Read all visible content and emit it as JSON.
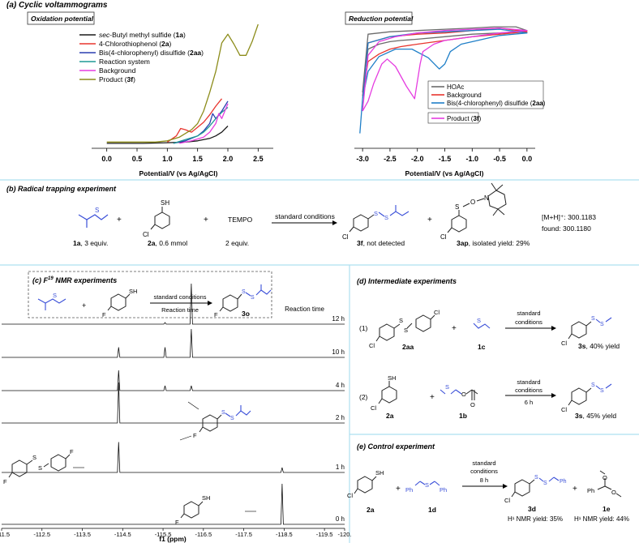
{
  "sections": {
    "a": "(a) Cyclic voltammograms",
    "b": "(b) Radical trapping experiment",
    "c_prefix": "(c) F",
    "c_sup": "19",
    "c_suffix": " NMR experiments",
    "d": "(d) Intermediate experiments",
    "e": "(e) Control experiment"
  },
  "colors": {
    "black": "#1a1a1a",
    "red": "#e8352e",
    "blue": "#2a3fb0",
    "teal": "#1f9a95",
    "magenta": "#e53de0",
    "olive": "#8c8c1a",
    "gray": "#6b6b6b",
    "skyblue": "#1f7fc8",
    "divider": "#aee0f0",
    "chem_blue": "#3a4fd8"
  },
  "chart_data": [
    {
      "type": "line",
      "title": "Oxidation potential",
      "xlabel": "Potential/V (vs Ag/AgCl)",
      "xlim": [
        -0.25,
        2.75
      ],
      "ylim": [
        0,
        1
      ],
      "ticks": [
        "0.0",
        "0.5",
        "1.0",
        "1.5",
        "2.0",
        "2.5"
      ],
      "tick_values": [
        0.0,
        0.5,
        1.0,
        1.5,
        2.0,
        2.5
      ],
      "legend": {
        "prefix": [
          "",
          "4-Chlorothiophenol (",
          "Bis(4-chlorophenyl) disulfide (",
          "Reaction system",
          "Background",
          "Product ("
        ],
        "italic_prefix": [
          "sec",
          "",
          "",
          "",
          "",
          ""
        ],
        "after_italic": [
          "-Butyl methyl sulfide (",
          "",
          "",
          "",
          "",
          ""
        ],
        "bold": [
          "1a",
          "2a",
          "2aa",
          "",
          "",
          "3f"
        ],
        "suffix": [
          ")",
          ")",
          ")",
          "",
          "",
          ")"
        ]
      },
      "series": [
        {
          "name": "sec-Butyl methyl sulfide (1a)",
          "color": "black",
          "x": [
            0.0,
            0.6,
            1.0,
            1.3,
            1.5,
            1.6,
            1.7,
            1.8,
            1.9,
            2.0
          ],
          "y": [
            0.04,
            0.04,
            0.045,
            0.05,
            0.06,
            0.07,
            0.08,
            0.1,
            0.13,
            0.18
          ]
        },
        {
          "name": "4-Chlorothiophenol (2a)",
          "color": "red",
          "x": [
            1.0,
            1.15,
            1.22,
            1.3,
            1.4,
            1.5,
            1.6,
            1.7,
            1.8,
            1.9
          ],
          "y": [
            0.05,
            0.1,
            0.16,
            0.15,
            0.13,
            0.17,
            0.21,
            0.27,
            0.34,
            0.4
          ]
        },
        {
          "name": "Bis(4-chlorophenyl) disulfide (2aa)",
          "color": "blue",
          "x": [
            1.1,
            1.3,
            1.5,
            1.6,
            1.7,
            1.75,
            1.8,
            1.9,
            2.0
          ],
          "y": [
            0.04,
            0.06,
            0.1,
            0.14,
            0.2,
            0.28,
            0.24,
            0.3,
            0.38
          ]
        },
        {
          "name": "Reaction system",
          "color": "teal",
          "x": [
            1.1,
            1.3,
            1.5,
            1.6,
            1.7,
            1.8,
            1.9,
            2.0
          ],
          "y": [
            0.04,
            0.07,
            0.1,
            0.13,
            0.18,
            0.24,
            0.29,
            0.33
          ]
        },
        {
          "name": "Background",
          "color": "magenta",
          "x": [
            1.2,
            1.4,
            1.6,
            1.7,
            1.8,
            1.85,
            1.9,
            2.0
          ],
          "y": [
            0.04,
            0.06,
            0.09,
            0.13,
            0.2,
            0.28,
            0.24,
            0.36
          ]
        },
        {
          "name": "Product (3f)",
          "color": "olive",
          "x": [
            0.0,
            0.8,
            1.0,
            1.2,
            1.4,
            1.5,
            1.6,
            1.7,
            1.8,
            1.9,
            2.0,
            2.1,
            2.2,
            2.3,
            2.4,
            2.5
          ],
          "y": [
            0.05,
            0.05,
            0.06,
            0.09,
            0.15,
            0.2,
            0.3,
            0.45,
            0.62,
            0.85,
            0.92,
            0.84,
            0.75,
            0.75,
            0.86,
            1.0
          ]
        }
      ]
    },
    {
      "type": "line",
      "title": "Reduction potential",
      "xlabel": "Potential/V (vs Ag/AgCl)",
      "xlim": [
        -3.15,
        0.15
      ],
      "ylim": [
        0,
        1
      ],
      "ticks": [
        "-3.0",
        "-2.5",
        "-2.0",
        "-1.5",
        "-1.0",
        "-0.5",
        "0.0"
      ],
      "tick_values": [
        -3.0,
        -2.5,
        -2.0,
        -1.5,
        -1.0,
        -0.5,
        0.0
      ],
      "legend": {
        "prefix": [
          "HOAc",
          "Background",
          "Bis(4-chlorophenyl) disulfide (",
          "Product ("
        ],
        "bold": [
          "",
          "",
          "2aa",
          "3f"
        ],
        "suffix": [
          "",
          "",
          ")",
          ")"
        ]
      },
      "series": [
        {
          "name": "HOAc",
          "color": "gray",
          "x": [
            -3.0,
            -2.9,
            -2.7,
            -2.5,
            -2.3,
            -2.0,
            -1.5,
            -1.0,
            -0.5,
            -0.2,
            0.0,
            -0.2,
            -0.6,
            -1.0,
            -1.5,
            -2.0,
            -2.5,
            -2.9,
            -3.0
          ],
          "y": [
            0.45,
            0.8,
            0.84,
            0.86,
            0.87,
            0.88,
            0.9,
            0.92,
            0.93,
            0.94,
            0.95,
            0.98,
            0.98,
            0.97,
            0.96,
            0.95,
            0.94,
            0.92,
            0.45
          ]
        },
        {
          "name": "Background",
          "color": "red",
          "x": [
            -3.0,
            -2.9,
            -2.7,
            -2.5,
            -2.3,
            -2.0,
            -1.5,
            -1.0,
            -0.5,
            0.0,
            -0.5,
            -1.0,
            -1.5,
            -2.0,
            -2.5,
            -2.9,
            -3.0
          ],
          "y": [
            0.42,
            0.7,
            0.76,
            0.8,
            0.82,
            0.84,
            0.87,
            0.9,
            0.92,
            0.94,
            0.97,
            0.95,
            0.93,
            0.92,
            0.9,
            0.85,
            0.42
          ]
        },
        {
          "name": "Bis(4-chlorophenyl) disulfide (2aa)",
          "color": "skyblue",
          "x": [
            -3.05,
            -3.0,
            -2.9,
            -2.7,
            -2.4,
            -2.1,
            -1.8,
            -1.6,
            -1.5,
            -1.4,
            -1.2,
            -0.8,
            -0.5,
            0.0,
            -0.5,
            -1.0,
            -1.5,
            -2.0,
            -2.5,
            -2.9,
            -3.0
          ],
          "y": [
            0.12,
            0.4,
            0.62,
            0.74,
            0.8,
            0.8,
            0.73,
            0.64,
            0.68,
            0.78,
            0.84,
            0.88,
            0.91,
            0.93,
            0.96,
            0.95,
            0.94,
            0.93,
            0.9,
            0.85,
            0.4
          ]
        },
        {
          "name": "Product (3f)",
          "color": "magenta",
          "x": [
            -3.0,
            -2.9,
            -2.8,
            -2.65,
            -2.55,
            -2.4,
            -2.2,
            -2.05,
            -1.95,
            -1.9,
            -1.7,
            -1.5,
            -1.0,
            -0.5,
            0.0,
            -0.5,
            -1.0,
            -1.5,
            -2.0,
            -2.4,
            -2.7,
            -2.9,
            -3.0
          ],
          "y": [
            0.3,
            0.38,
            0.52,
            0.68,
            0.72,
            0.66,
            0.5,
            0.4,
            0.68,
            0.78,
            0.84,
            0.87,
            0.9,
            0.93,
            0.95,
            0.97,
            0.96,
            0.95,
            0.93,
            0.9,
            0.86,
            0.75,
            0.3
          ]
        }
      ]
    },
    {
      "type": "line",
      "title": "F19 NMR experiments",
      "xlabel": "f1 (ppm)",
      "xlim": [
        -111.5,
        -120.0
      ],
      "ticks": [
        "-111.5",
        "-112.5",
        "-113.5",
        "-114.5",
        "-115.5",
        "-116.5",
        "-117.5",
        "-118.5",
        "-119.5",
        "-120."
      ],
      "tick_values": [
        -111.5,
        -112.5,
        -113.5,
        -114.5,
        -115.5,
        -116.5,
        -117.5,
        -118.5,
        -119.5,
        -120.0
      ],
      "trace_labels": [
        "12 h",
        "10 h",
        "4 h",
        "2 h",
        "1 h",
        "0 h"
      ],
      "reaction_time_label": "Reaction time",
      "peak_positions": [
        -114.4,
        -115.55,
        -116.2,
        -118.45
      ],
      "peak_heights": [
        [
          0.0,
          0.04,
          1.0,
          0.0
        ],
        [
          0.25,
          0.25,
          0.7,
          0.0
        ],
        [
          0.5,
          0.12,
          0.12,
          0.0
        ],
        [
          1.0,
          0.0,
          0.0,
          0.0
        ],
        [
          0.75,
          0.0,
          0.0,
          0.12
        ],
        [
          0.0,
          0.0,
          0.0,
          1.0
        ]
      ]
    }
  ],
  "panel_b": {
    "sub1": "1a",
    "sub1_rest": ", 3 equiv.",
    "sub2": "2a",
    "sub2_rest": ", 0.6 mmol",
    "tempo": "TEMPO",
    "tempo_equiv": "2 equiv.",
    "conditions": "standard conditions",
    "prod1": "3f",
    "prod1_rest": ", not detected",
    "prod2": "3ap",
    "prod2_rest": ", isolated yield: 29%",
    "ms_line1": "[M+H]⁺: 300.1183",
    "ms_line2": "found: 300.1180",
    "plus": "+"
  },
  "panel_c": {
    "conditions": "standard conditions",
    "time": "Reaction time",
    "product": "3o"
  },
  "panel_d": {
    "entry1": "(1)",
    "entry2": "(2)",
    "label_2aa": "2aa",
    "label_1c": "1c",
    "cond1_a": "standard",
    "cond1_b": "conditions",
    "prod1": "3s",
    "prod1_rest": ", 40% yield",
    "label_2a": "2a",
    "label_1b": "1b",
    "cond2_a": "standard",
    "cond2_b": "conditions",
    "cond2_c": "6 h",
    "prod2": "3s",
    "prod2_rest": ", 45% yield",
    "plus": "+"
  },
  "panel_e": {
    "label_2a": "2a",
    "label_1d": "1d",
    "cond_a": "standard",
    "cond_b": "conditions",
    "cond_c": "8 h",
    "prod1": "3d",
    "prod2": "1e",
    "yield1": "H¹ NMR yield: 35%",
    "yield2": "H¹ NMR yield: 44%",
    "plus": "+"
  },
  "atoms": {
    "S": "S",
    "SH": "SH",
    "Cl": "Cl",
    "F": "F",
    "O": "O",
    "N": "N",
    "Ph": "Ph"
  }
}
